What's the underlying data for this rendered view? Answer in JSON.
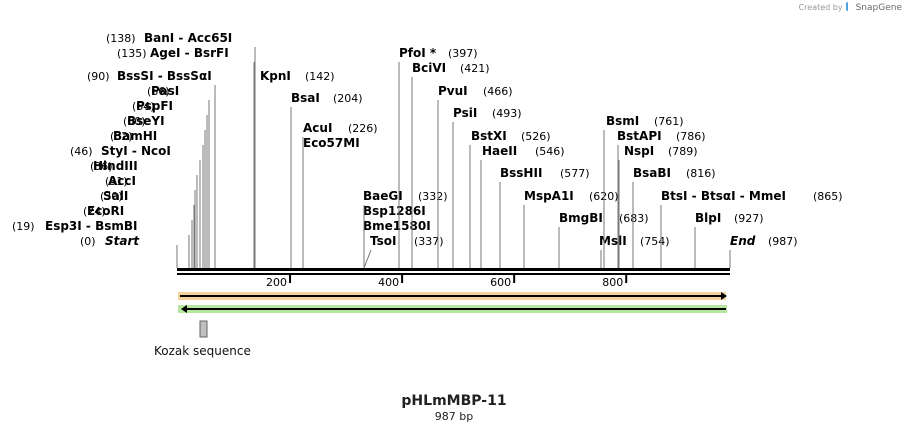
{
  "credit": {
    "prefix": "Created by",
    "brand": "SnapGene"
  },
  "plasmid": {
    "name": "pHLmMBP-11",
    "length_label": "987 bp",
    "length": 987
  },
  "ruler": {
    "ticks": [
      "200",
      "400",
      "600",
      "800"
    ]
  },
  "features": [
    {
      "label": "Kozak sequence"
    }
  ],
  "sites": [
    {
      "name": "Start",
      "pos": "(0)",
      "italic": true
    },
    {
      "name": "Esp3I  -  BsmBI",
      "pos": "(19)"
    },
    {
      "name": "EcoRI",
      "pos": "(24)"
    },
    {
      "name": "SalI",
      "pos": "(30)"
    },
    {
      "name": "AccI",
      "pos": "(31)"
    },
    {
      "name": "HindIII",
      "pos": "(36)"
    },
    {
      "name": "StyI  -  NcoI",
      "pos": "(46)"
    },
    {
      "name": "BamHI",
      "pos": "(52)"
    },
    {
      "name": "BseYI",
      "pos": "(60)"
    },
    {
      "name": "PspFI",
      "pos": "(64)"
    },
    {
      "name": "PasI",
      "pos": "(66)"
    },
    {
      "name": "BssSI  -  BssSαI",
      "pos": "(90)"
    },
    {
      "name": "AgeI  -  BsrFI",
      "pos": "(135)"
    },
    {
      "name": "BanI  -  Acc65I",
      "pos": "(138)"
    },
    {
      "name": "KpnI",
      "pos": "(142)"
    },
    {
      "name": "BsaI",
      "pos": "(204)"
    },
    {
      "name": "AcuI",
      "pos": "(226)"
    },
    {
      "name": "Eco57MI",
      "pos": ""
    },
    {
      "name": "TsoI",
      "pos": "(337)"
    },
    {
      "name": "Bme1580I",
      "pos": ""
    },
    {
      "name": "Bsp1286I",
      "pos": ""
    },
    {
      "name": "BaeGI",
      "pos": "(332)"
    },
    {
      "name": "PfoI *",
      "pos": "(397)"
    },
    {
      "name": "BciVI",
      "pos": "(421)"
    },
    {
      "name": "PvuI",
      "pos": "(466)"
    },
    {
      "name": "PsiI",
      "pos": "(493)"
    },
    {
      "name": "BstXI",
      "pos": "(526)"
    },
    {
      "name": "HaeII",
      "pos": "(546)"
    },
    {
      "name": "BssHII",
      "pos": "(577)"
    },
    {
      "name": "MspA1I",
      "pos": "(620)"
    },
    {
      "name": "BmgBI",
      "pos": "(683)"
    },
    {
      "name": "MslI",
      "pos": "(754)"
    },
    {
      "name": "BsmI",
      "pos": "(761)"
    },
    {
      "name": "BstAPI",
      "pos": "(786)"
    },
    {
      "name": "NspI",
      "pos": "(789)"
    },
    {
      "name": "BsaBI",
      "pos": "(816)"
    },
    {
      "name": "BtsI  -  BtsαI  -  MmeI",
      "pos": "(865)"
    },
    {
      "name": "BlpI",
      "pos": "(927)"
    },
    {
      "name": "End",
      "pos": "(987)",
      "italic": true
    }
  ],
  "colors": {
    "orf_fill": "#f5a623",
    "orf_border": "#f6d39a",
    "orf2_fill": "#5ec93a",
    "orf2_border": "#b5e79f",
    "feature_box": "#c0c0c0"
  }
}
